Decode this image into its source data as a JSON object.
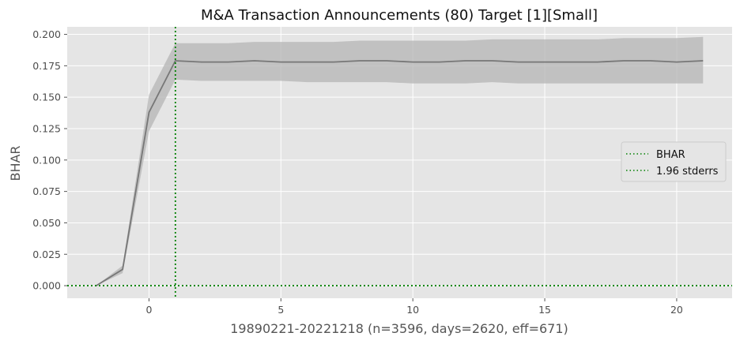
{
  "chart_data": {
    "type": "line",
    "title": "M&A Transaction Announcements (80) Target [1][Small]",
    "xlabel": "19890221-20221218 (n=3596, days=2620, eff=671)",
    "ylabel": "BHAR",
    "xlim": [
      -3.1,
      22.1
    ],
    "ylim": [
      -0.01,
      0.206
    ],
    "xticks": [
      0,
      5,
      10,
      15,
      20
    ],
    "xtick_labels": [
      "0",
      "5",
      "10",
      "15",
      "20"
    ],
    "yticks": [
      0.0,
      0.025,
      0.05,
      0.075,
      0.1,
      0.125,
      0.15,
      0.175,
      0.2
    ],
    "ytick_labels": [
      "0.000",
      "0.025",
      "0.050",
      "0.075",
      "0.100",
      "0.125",
      "0.150",
      "0.175",
      "0.200"
    ],
    "grid": true,
    "legend_position": "center-right",
    "legend": [
      {
        "label": "BHAR",
        "style": "dotted",
        "color": "#008000"
      },
      {
        "label": "1.96 stderrs",
        "style": "dotted",
        "color": "#008000"
      }
    ],
    "series": [
      {
        "x": [
          -2,
          -1,
          0,
          1,
          2,
          3,
          4,
          5,
          6,
          7,
          8,
          9,
          10,
          11,
          12,
          13,
          14,
          15,
          16,
          17,
          18,
          19,
          20,
          21
        ],
        "y": [
          0.0,
          0.013,
          0.138,
          0.179,
          0.178,
          0.178,
          0.179,
          0.178,
          0.178,
          0.178,
          0.179,
          0.179,
          0.178,
          0.178,
          0.179,
          0.179,
          0.178,
          0.178,
          0.178,
          0.178,
          0.179,
          0.179,
          0.178,
          0.179
        ],
        "lower": [
          0.0,
          0.01,
          0.123,
          0.164,
          0.163,
          0.163,
          0.163,
          0.163,
          0.162,
          0.162,
          0.162,
          0.162,
          0.161,
          0.161,
          0.161,
          0.162,
          0.161,
          0.161,
          0.161,
          0.161,
          0.161,
          0.161,
          0.161,
          0.161
        ],
        "upper": [
          0.0,
          0.016,
          0.152,
          0.193,
          0.193,
          0.193,
          0.194,
          0.194,
          0.194,
          0.194,
          0.195,
          0.195,
          0.195,
          0.195,
          0.195,
          0.196,
          0.196,
          0.196,
          0.196,
          0.196,
          0.197,
          0.197,
          0.197,
          0.198
        ],
        "color": "#777777",
        "band_color": "#b4b4b4"
      }
    ],
    "reference_lines": [
      {
        "axis": "x",
        "value": 1,
        "style": "dotted",
        "color": "#008000"
      },
      {
        "axis": "y",
        "value": 0,
        "style": "dotted",
        "color": "#008000"
      }
    ],
    "colors": {
      "plot_background": "#e5e5e5",
      "grid": "#ffffff",
      "reference": "#008000"
    }
  }
}
